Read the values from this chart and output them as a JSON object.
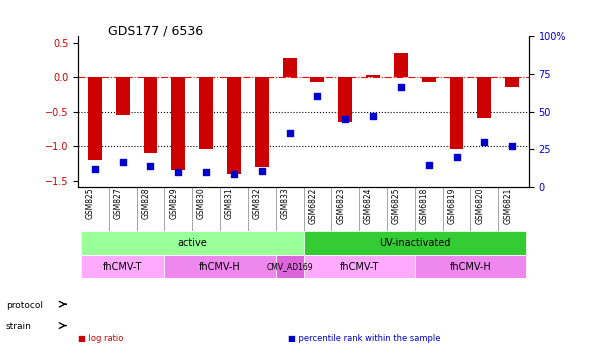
{
  "title": "GDS177 / 6536",
  "samples": [
    "GSM825",
    "GSM827",
    "GSM828",
    "GSM829",
    "GSM830",
    "GSM831",
    "GSM832",
    "GSM833",
    "GSM6822",
    "GSM6823",
    "GSM6824",
    "GSM6825",
    "GSM6818",
    "GSM6819",
    "GSM6820",
    "GSM6821"
  ],
  "log_ratio": [
    -1.2,
    -0.55,
    -1.1,
    -1.35,
    -1.05,
    -1.4,
    -1.3,
    0.27,
    -0.07,
    -0.65,
    0.03,
    0.35,
    -0.07,
    -1.05,
    -0.6,
    -0.15
  ],
  "percentile": [
    12,
    17,
    14,
    10,
    10,
    9,
    11,
    36,
    60,
    45,
    47,
    66,
    15,
    20,
    30,
    27
  ],
  "ylim_left": [
    -1.6,
    0.6
  ],
  "ylim_right": [
    0,
    100
  ],
  "hline_y": [
    0.0,
    -0.5,
    -1.0
  ],
  "hline_styles": [
    "dashdot",
    "dotted",
    "dotted"
  ],
  "hline_colors": [
    "red",
    "black",
    "black"
  ],
  "bar_color": "#cc0000",
  "dot_color": "#0000cc",
  "bar_width": 0.5,
  "protocol_spans": [
    {
      "label": "active",
      "start": 0,
      "end": 7,
      "color": "#99ff99"
    },
    {
      "label": "UV-inactivated",
      "start": 8,
      "end": 15,
      "color": "#33cc33"
    }
  ],
  "strain_spans": [
    {
      "label": "fhCMV-T",
      "start": 0,
      "end": 2,
      "color": "#ffaaff"
    },
    {
      "label": "fhCMV-H",
      "start": 3,
      "end": 6,
      "color": "#ee88ee"
    },
    {
      "label": "CMV_AD169",
      "start": 7,
      "end": 7,
      "color": "#dd66dd"
    },
    {
      "label": "fhCMV-T",
      "start": 8,
      "end": 11,
      "color": "#ffaaff"
    },
    {
      "label": "fhCMV-H",
      "start": 12,
      "end": 15,
      "color": "#ee88ee"
    }
  ],
  "legend_items": [
    {
      "label": "log ratio",
      "color": "#cc0000"
    },
    {
      "label": "percentile rank within the sample",
      "color": "#0000cc"
    }
  ],
  "left_ylabel_color": "#cc0000",
  "right_ylabel_color": "#0000cc",
  "right_yticks": [
    0,
    25,
    50,
    75,
    100
  ],
  "right_yticklabels": [
    "0",
    "25",
    "50",
    "75",
    "100%"
  ]
}
